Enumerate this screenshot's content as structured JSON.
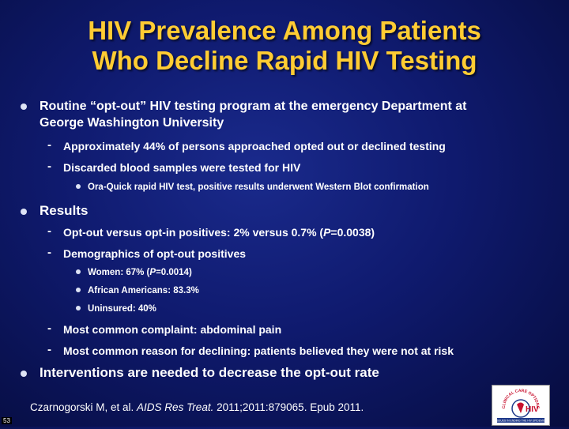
{
  "title": {
    "line1": "HIV Prevalence Among Patients",
    "line2": "Who Decline Rapid HIV Testing"
  },
  "bullets": {
    "b1": {
      "text_line1": "Routine “opt-out” HIV testing program at the emergency Department at",
      "text_line2": "George Washington University",
      "sub1": "Approximately 44% of persons approached opted out or declined testing",
      "sub2": "Discarded blood samples were tested for HIV",
      "sub2_item1": "Ora-Quick rapid HIV test, positive results underwent Western Blot confirmation"
    },
    "b2": {
      "text": "Results",
      "sub1_pre": "Opt-out versus opt-in positives: 2% versus 0.7% (",
      "sub1_p": "P",
      "sub1_post": "=0.0038)",
      "sub2": "Demographics of opt-out positives",
      "sub2_item1_pre": "Women: 67% (",
      "sub2_item1_p": "P",
      "sub2_item1_post": "=0.0014)",
      "sub2_item2": "African Americans: 83.3%",
      "sub2_item3": "Uninsured: 40%",
      "sub3": "Most  common complaint: abdominal pain",
      "sub4": "Most common reason for declining: patients believed they were not at risk"
    },
    "b3": {
      "text": "Interventions are needed to decrease the opt-out rate"
    }
  },
  "citation": {
    "pre": "Czarnogorski M, et al. ",
    "journal": "AIDS Res Treat.",
    "post": " 2011;2011:879065. Epub 2011."
  },
  "logo": {
    "arc_text": "CLINICAL CARE OPTIONS",
    "hiv_text": "HIV",
    "bottom_text": "ISSUES IN ENDING THE HIV EPIDEMIC"
  },
  "page_number": "53",
  "colors": {
    "title": "#ffcc33",
    "background": "#0f1a6e",
    "text": "#ffffff"
  }
}
